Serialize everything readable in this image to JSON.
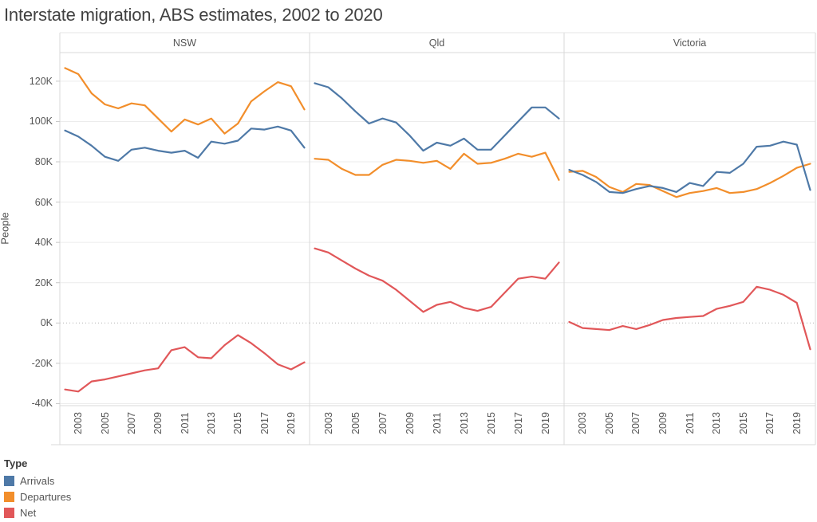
{
  "title": "Interstate migration, ABS estimates, 2002 to 2020",
  "y_axis": {
    "label": "People",
    "tick_values": [
      120,
      100,
      80,
      60,
      40,
      20,
      0,
      -20,
      -40
    ],
    "tick_labels": [
      "120K",
      "100K",
      "80K",
      "60K",
      "40K",
      "20K",
      "0K",
      "-20K",
      "-40K"
    ]
  },
  "x_axis": {
    "tick_years": [
      2003,
      2005,
      2007,
      2009,
      2011,
      2013,
      2015,
      2017,
      2019
    ]
  },
  "legend": {
    "title": "Type",
    "items": [
      {
        "label": "Arrivals",
        "color": "#4e79a7"
      },
      {
        "label": "Departures",
        "color": "#f28e2b"
      },
      {
        "label": "Net",
        "color": "#e15759"
      }
    ]
  },
  "chart_data": {
    "type": "line",
    "unit": "thousands of people",
    "title": "Interstate migration, ABS estimates, 2002 to 2020",
    "ylabel": "People",
    "ylim": [
      -41,
      134
    ],
    "grid": "horizontal only, dotted zero line",
    "legend_position": "bottom-left",
    "x": [
      2002,
      2003,
      2004,
      2005,
      2006,
      2007,
      2008,
      2009,
      2010,
      2011,
      2012,
      2013,
      2014,
      2015,
      2016,
      2017,
      2018,
      2019,
      2020
    ],
    "panels": [
      {
        "name": "NSW",
        "series": [
          {
            "name": "Arrivals",
            "color": "#4e79a7",
            "values": [
              95.5,
              92.5,
              88,
              82.5,
              80.5,
              86,
              87,
              85.5,
              84.5,
              85.5,
              82,
              90,
              89,
              90.5,
              96.5,
              96,
              97.5,
              95.5,
              87
            ]
          },
          {
            "name": "Departures",
            "color": "#f28e2b",
            "values": [
              126.5,
              123.5,
              114,
              108.5,
              106.5,
              109,
              108,
              101.5,
              95,
              101,
              98.5,
              101.5,
              94,
              99,
              110,
              115,
              119.5,
              117.5,
              106
            ]
          },
          {
            "name": "Net",
            "color": "#e15759",
            "values": [
              -33,
              -34,
              -29,
              -28,
              -26.5,
              -25,
              -23.5,
              -22.5,
              -13.5,
              -12,
              -17,
              -17.5,
              -11,
              -6,
              -10,
              -15,
              -20.5,
              -23,
              -19.5
            ]
          }
        ]
      },
      {
        "name": "Qld",
        "series": [
          {
            "name": "Arrivals",
            "color": "#4e79a7",
            "values": [
              119,
              117,
              111.5,
              105,
              99,
              101.5,
              99.5,
              93,
              85.5,
              89.5,
              88,
              91.5,
              86,
              86,
              93,
              100,
              107,
              107,
              101.5
            ]
          },
          {
            "name": "Departures",
            "color": "#f28e2b",
            "values": [
              81.5,
              81,
              76.5,
              73.5,
              73.5,
              78.5,
              81,
              80.5,
              79.5,
              80.5,
              76.5,
              84,
              79,
              79.5,
              81.5,
              84,
              82.5,
              84.5,
              71
            ]
          },
          {
            "name": "Net",
            "color": "#e15759",
            "values": [
              37,
              35,
              31,
              27,
              23.5,
              21,
              16.5,
              11,
              5.5,
              9,
              10.5,
              7.5,
              6,
              8,
              15,
              22,
              23,
              22,
              30
            ]
          }
        ]
      },
      {
        "name": "Victoria",
        "series": [
          {
            "name": "Arrivals",
            "color": "#4e79a7",
            "values": [
              76,
              73.5,
              70,
              65,
              64.5,
              66.5,
              68,
              67,
              65,
              69.5,
              68,
              75,
              74.5,
              79,
              87.5,
              88,
              90,
              88.5,
              66
            ]
          },
          {
            "name": "Departures",
            "color": "#f28e2b",
            "values": [
              75,
              75.5,
              72.5,
              67.5,
              65,
              69,
              68.5,
              65.5,
              62.5,
              64.5,
              65.5,
              67,
              64.5,
              65,
              66.5,
              69.5,
              73,
              77,
              79
            ]
          },
          {
            "name": "Net",
            "color": "#e15759",
            "values": [
              0.5,
              -2.5,
              -3,
              -3.5,
              -1.5,
              -3,
              -1,
              1.5,
              2.5,
              3,
              3.5,
              7,
              8.5,
              10.5,
              18,
              16.5,
              14,
              10,
              -13
            ]
          }
        ]
      }
    ]
  }
}
